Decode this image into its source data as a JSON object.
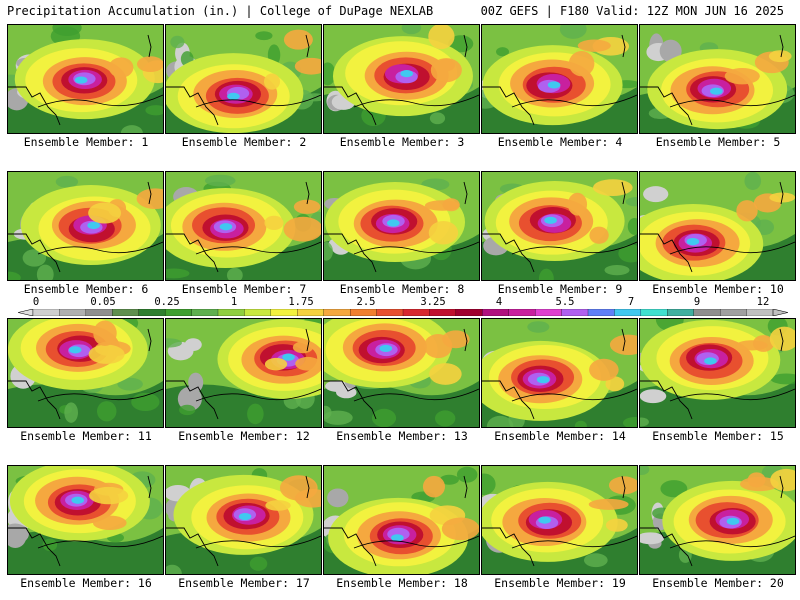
{
  "header": {
    "left": "Precipitation Accumulation (in.) | College of DuPage NEXLAB",
    "right": "00Z GEFS | F180 Valid: 12Z MON JUN 16 2025"
  },
  "legend": {
    "ticks": [
      "0",
      "0.05",
      "0.25",
      "1",
      "1.75",
      "2.5",
      "3.25",
      "4",
      "5.5",
      "7",
      "9",
      "12"
    ],
    "colors": [
      "#cfcfcf",
      "#b0b0b0",
      "#8f8f8f",
      "#5f8f4f",
      "#2f7f2f",
      "#3f9f2f",
      "#5fb04f",
      "#8fcf3f",
      "#c8e83f",
      "#f2f23f",
      "#f5d23f",
      "#f5a83f",
      "#f07f2f",
      "#e8502f",
      "#d8282f",
      "#c0102f",
      "#a0002f",
      "#b0107f",
      "#c8209f",
      "#e040d0",
      "#b060f0",
      "#6080f8",
      "#40c8f0",
      "#40e0d0",
      "#40b0a0",
      "#8f8f8f",
      "#a0a0a0",
      "#c0c0c0"
    ]
  },
  "members": [
    {
      "label": "Ensemble Member: 1"
    },
    {
      "label": "Ensemble Member: 2"
    },
    {
      "label": "Ensemble Member: 3"
    },
    {
      "label": "Ensemble Member: 4"
    },
    {
      "label": "Ensemble Member: 5"
    },
    {
      "label": "Ensemble Member: 6"
    },
    {
      "label": "Ensemble Member: 7"
    },
    {
      "label": "Ensemble Member: 8"
    },
    {
      "label": "Ensemble Member: 9"
    },
    {
      "label": "Ensemble Member: 10"
    },
    {
      "label": "Ensemble Member: 11"
    },
    {
      "label": "Ensemble Member: 12"
    },
    {
      "label": "Ensemble Member: 13"
    },
    {
      "label": "Ensemble Member: 14"
    },
    {
      "label": "Ensemble Member: 15"
    },
    {
      "label": "Ensemble Member: 16"
    },
    {
      "label": "Ensemble Member: 17"
    },
    {
      "label": "Ensemble Member: 18"
    },
    {
      "label": "Ensemble Member: 19"
    },
    {
      "label": "Ensemble Member: 20"
    }
  ]
}
